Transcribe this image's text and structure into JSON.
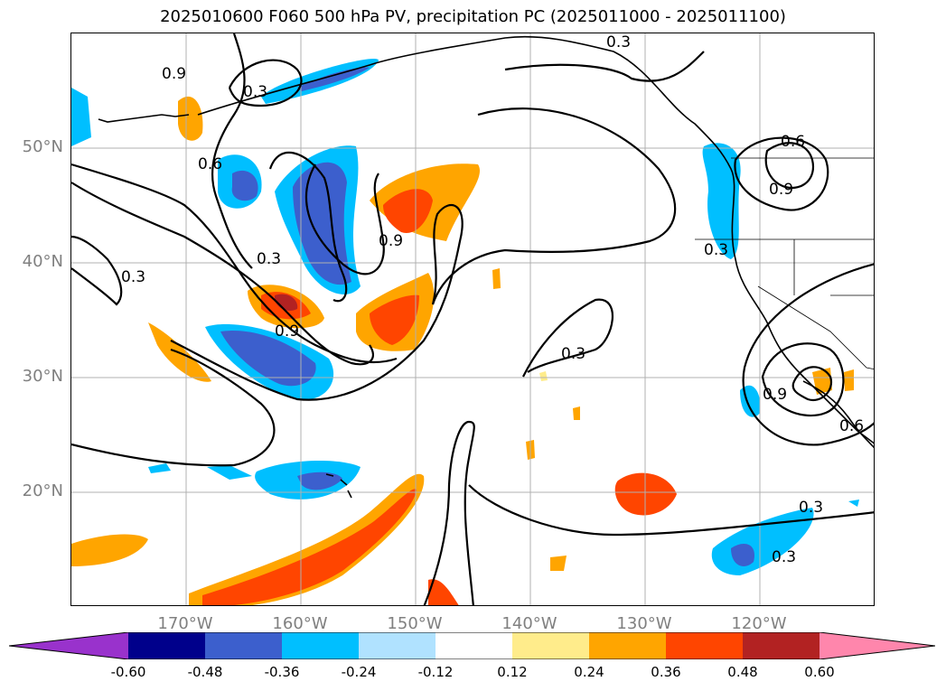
{
  "title": "2025010600 F060 500 hPa PV, precipitation PC (2025011000 - 2025011100)",
  "lat_labels": [
    "50°N",
    "40°N",
    "30°N",
    "20°N"
  ],
  "lon_labels": [
    "170°W",
    "160°W",
    "150°W",
    "140°W",
    "130°W",
    "120°W"
  ],
  "contour_labels": [
    "0.3",
    "0.6",
    "0.9"
  ],
  "colorbar": {
    "colors": [
      "#9932cc",
      "#00008b",
      "#3c5fcd",
      "#00bfff",
      "#b0e2ff",
      "#ffffff",
      "#ffec8b",
      "#ffa500",
      "#ff4500",
      "#b22222",
      "#ff86ac"
    ],
    "ticks": [
      "-0.60",
      "-0.48",
      "-0.36",
      "-0.24",
      "-0.12",
      "0.12",
      "0.24",
      "0.36",
      "0.48",
      "0.60"
    ]
  }
}
